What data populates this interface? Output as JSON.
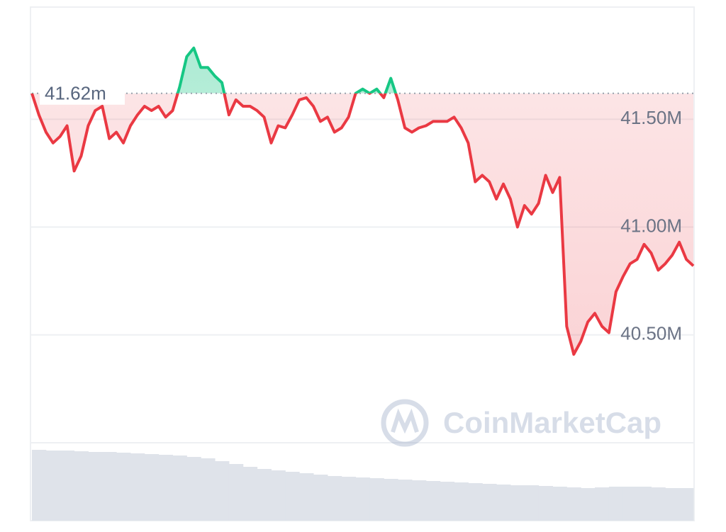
{
  "chart_data": {
    "type": "line",
    "series": [
      {
        "color": "#ea3943",
        "above_color": "#16c784",
        "values": [
          41.62,
          41.52,
          41.44,
          41.39,
          41.42,
          41.47,
          41.26,
          41.33,
          41.47,
          41.54,
          41.56,
          41.41,
          41.44,
          41.39,
          41.47,
          41.52,
          41.56,
          41.54,
          41.56,
          41.51,
          41.54,
          41.65,
          41.79,
          41.83,
          41.74,
          41.74,
          41.7,
          41.67,
          41.52,
          41.59,
          41.56,
          41.56,
          41.54,
          41.51,
          41.39,
          41.47,
          41.46,
          41.52,
          41.59,
          41.6,
          41.56,
          41.49,
          41.51,
          41.44,
          41.46,
          41.51,
          41.62,
          41.64,
          41.62,
          41.64,
          41.6,
          41.69,
          41.59,
          41.46,
          41.44,
          41.46,
          41.47,
          41.49,
          41.49,
          41.49,
          41.51,
          41.46,
          41.39,
          41.21,
          41.24,
          41.21,
          41.13,
          41.2,
          41.13,
          41.0,
          41.1,
          41.06,
          41.11,
          41.24,
          41.16,
          41.23,
          40.54,
          40.41,
          40.47,
          40.56,
          40.6,
          40.54,
          40.51,
          40.7,
          40.77,
          40.83,
          40.85,
          40.92,
          40.88,
          40.8,
          40.83,
          40.87,
          40.93,
          40.85,
          40.82
        ]
      }
    ],
    "reference": {
      "value": 41.62,
      "label": "41.62m"
    },
    "ylim": [
      40.0,
      42.02
    ],
    "yticks": [
      {
        "value": 40.5,
        "label": "40.50M"
      },
      {
        "value": 41.0,
        "label": "41.00M"
      },
      {
        "value": 41.5,
        "label": "41.50M"
      }
    ],
    "grid": true,
    "volume": [
      100,
      99,
      99,
      98,
      97,
      97,
      96,
      95,
      94,
      93,
      92,
      90,
      88,
      84,
      80,
      76,
      73,
      71,
      69,
      67,
      65,
      63,
      62,
      61,
      60,
      59,
      58,
      57,
      56,
      55,
      54,
      53,
      52,
      51,
      50,
      50,
      49,
      48,
      47,
      46,
      47,
      48,
      48,
      48,
      47,
      46,
      46
    ],
    "volume_color": "#dfe3ea",
    "watermark": "CoinMarketCap"
  }
}
